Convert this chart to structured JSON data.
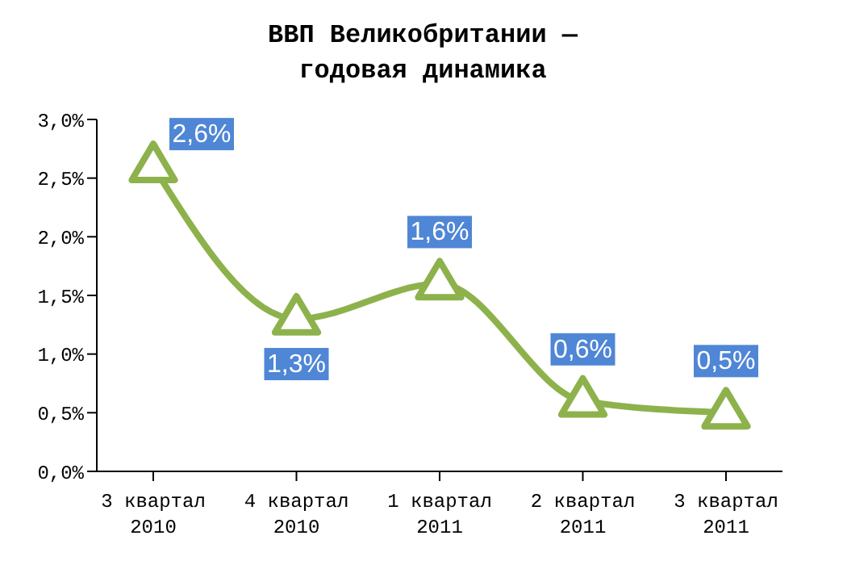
{
  "chart_data": {
    "type": "line",
    "title": "ВВП Великобритании — годовая динамика",
    "categories": [
      "3 квартал 2010",
      "4 квартал 2010",
      "1 квартал 2011",
      "2 квартал 2011",
      "3 квартал 2011"
    ],
    "series": [
      {
        "color": "#8db24c",
        "values": [
          2.6,
          1.3,
          1.6,
          0.6,
          0.5
        ],
        "value_labels": [
          "2,6%",
          "1,3%",
          "1,6%",
          "0,6%",
          "0,5%"
        ]
      }
    ],
    "ylim": [
      0,
      3
    ],
    "yticks": [
      {
        "value": 0,
        "label": "0,0%"
      },
      {
        "value": 0.5,
        "label": "0,5%"
      },
      {
        "value": 1,
        "label": "1,0%"
      },
      {
        "value": 1.5,
        "label": "1,5%"
      },
      {
        "value": 2,
        "label": "2,0%"
      },
      {
        "value": 2.5,
        "label": "2,5%"
      },
      {
        "value": 3,
        "label": "3,0%"
      }
    ],
    "marker": "triangle",
    "grid": false,
    "legend": false
  }
}
